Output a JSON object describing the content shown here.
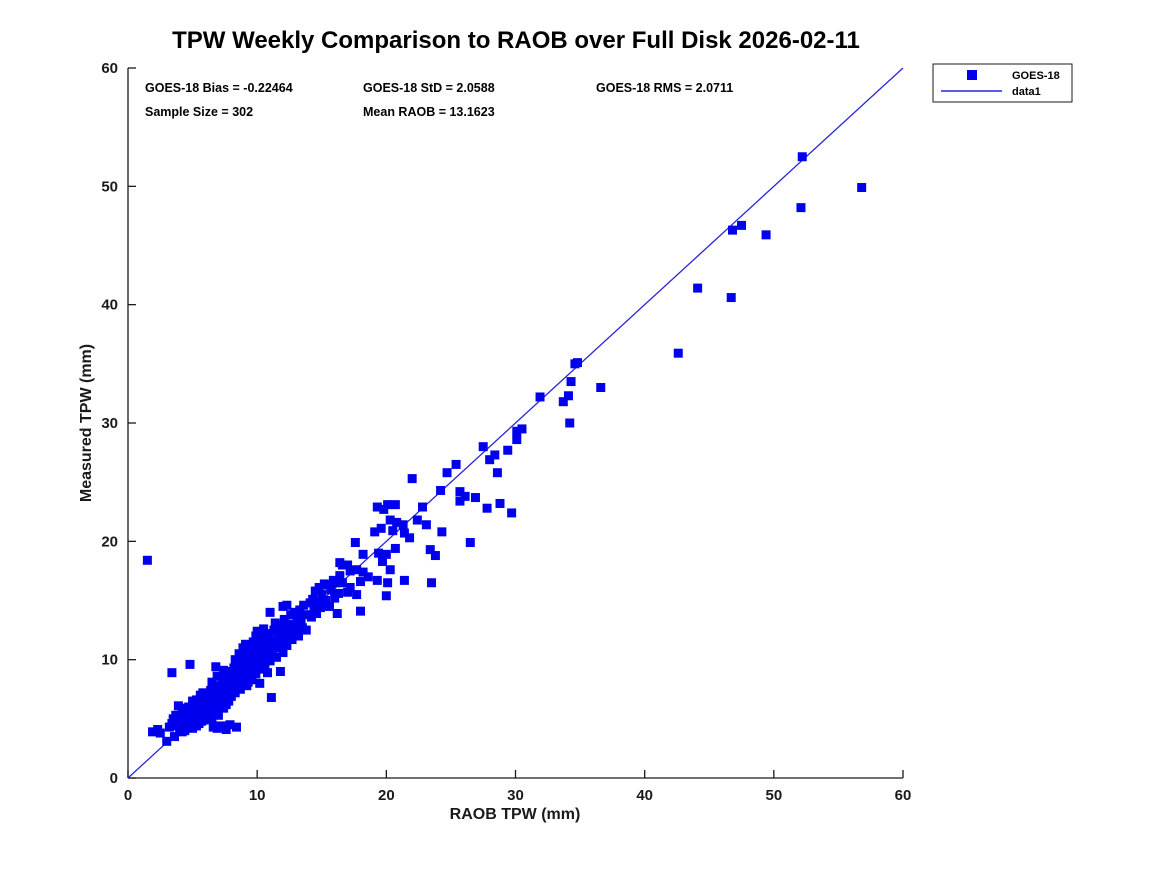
{
  "figure": {
    "background": "#FFFFFF"
  },
  "colors": {
    "marker": "#0000EE",
    "reference_line": "#2626D8",
    "axis": "#1A1A1A",
    "text": "#000000",
    "legend_border": "#1A1A1A",
    "legend_background": "#FFFFFF"
  },
  "chart_data": {
    "type": "scatter",
    "title": "TPW Weekly Comparison to RAOB over Full Disk 2026-02-11",
    "xlabel": "RAOB TPW (mm)",
    "ylabel": "Measured TPW (mm)",
    "xlim": [
      0,
      60
    ],
    "ylim": [
      0,
      60
    ],
    "x_ticks": [
      0,
      10,
      20,
      30,
      40,
      50,
      60
    ],
    "y_ticks": [
      0,
      10,
      20,
      30,
      40,
      50,
      60
    ],
    "grid": false,
    "stats": {
      "bias": "GOES-18 Bias = -0.22464",
      "std": "GOES-18 StD = 2.0588",
      "rms": "GOES-18 RMS = 2.0711",
      "sample_size": "Sample Size = 302",
      "mean_raob": "Mean RAOB = 13.1623"
    },
    "legend": {
      "position": "northeast",
      "entries": [
        {
          "label": "GOES-18",
          "type": "marker"
        },
        {
          "label": "data1",
          "type": "line"
        }
      ]
    },
    "reference_line": {
      "name": "data1",
      "from": [
        0,
        0
      ],
      "to": [
        60,
        60
      ]
    },
    "series": [
      {
        "name": "GOES-18",
        "marker": "filled-square",
        "points": [
          [
            1.5,
            18.4
          ],
          [
            1.9,
            3.9
          ],
          [
            2.3,
            4.1
          ],
          [
            2.5,
            3.8
          ],
          [
            3.0,
            3.1
          ],
          [
            3.2,
            4.3
          ],
          [
            3.4,
            4.6
          ],
          [
            3.5,
            5.0
          ],
          [
            3.6,
            3.5
          ],
          [
            3.7,
            5.3
          ],
          [
            3.8,
            4.4
          ],
          [
            3.4,
            8.9
          ],
          [
            3.9,
            6.1
          ],
          [
            4.0,
            4.1
          ],
          [
            4.1,
            4.8
          ],
          [
            4.2,
            3.9
          ],
          [
            4.2,
            5.5
          ],
          [
            4.3,
            4.6
          ],
          [
            4.4,
            5.1
          ],
          [
            4.4,
            4.0
          ],
          [
            4.5,
            5.8
          ],
          [
            4.6,
            4.3
          ],
          [
            4.6,
            5.3
          ],
          [
            4.7,
            6.0
          ],
          [
            4.8,
            4.5
          ],
          [
            4.8,
            9.6
          ],
          [
            4.9,
            5.2
          ],
          [
            5.0,
            4.2
          ],
          [
            5.0,
            5.7
          ],
          [
            5.1,
            4.8
          ],
          [
            5.1,
            6.2
          ],
          [
            5.2,
            5.4
          ],
          [
            5.3,
            4.4
          ],
          [
            5.3,
            6.6
          ],
          [
            5.4,
            5.0
          ],
          [
            5.4,
            5.9
          ],
          [
            5.5,
            4.6
          ],
          [
            5.5,
            6.3
          ],
          [
            5.6,
            5.2
          ],
          [
            5.6,
            7.0
          ],
          [
            5.7,
            5.6
          ],
          [
            5.7,
            4.8
          ],
          [
            5.8,
            6.1
          ],
          [
            5.8,
            5.3
          ],
          [
            5.9,
            6.6
          ],
          [
            5.9,
            4.9
          ],
          [
            6.0,
            5.5
          ],
          [
            6.0,
            6.9
          ],
          [
            4.3,
            5.9
          ],
          [
            5.8,
            7.2
          ],
          [
            5.0,
            6.5
          ],
          [
            6.1,
            5.8
          ],
          [
            6.1,
            6.6
          ],
          [
            6.2,
            5.2
          ],
          [
            6.2,
            7.1
          ],
          [
            6.3,
            6.0
          ],
          [
            6.3,
            6.9
          ],
          [
            6.4,
            5.6
          ],
          [
            6.4,
            7.4
          ],
          [
            6.5,
            6.3
          ],
          [
            6.5,
            5.0
          ],
          [
            6.6,
            7.0
          ],
          [
            6.6,
            4.3
          ],
          [
            6.7,
            6.1
          ],
          [
            6.7,
            7.6
          ],
          [
            6.8,
            5.8
          ],
          [
            6.8,
            6.7
          ],
          [
            6.9,
            7.3
          ],
          [
            6.9,
            4.2
          ],
          [
            7.0,
            6.4
          ],
          [
            7.0,
            7.8
          ],
          [
            7.1,
            6.0
          ],
          [
            7.1,
            7.0
          ],
          [
            7.2,
            7.5
          ],
          [
            7.2,
            4.4
          ],
          [
            7.3,
            6.6
          ],
          [
            7.3,
            8.1
          ],
          [
            7.4,
            7.2
          ],
          [
            7.4,
            5.9
          ],
          [
            7.5,
            6.8
          ],
          [
            7.5,
            8.4
          ],
          [
            7.6,
            7.7
          ],
          [
            7.6,
            4.1
          ],
          [
            7.7,
            7.0
          ],
          [
            7.7,
            8.8
          ],
          [
            7.8,
            6.5
          ],
          [
            7.8,
            7.9
          ],
          [
            7.9,
            7.3
          ],
          [
            7.9,
            4.5
          ],
          [
            8.0,
            8.2
          ],
          [
            8.0,
            6.9
          ],
          [
            6.5,
            8.1
          ],
          [
            7.0,
            5.3
          ],
          [
            7.6,
            6.2
          ],
          [
            8.0,
            9.0
          ],
          [
            6.9,
            8.6
          ],
          [
            7.4,
            9.1
          ],
          [
            6.8,
            9.4
          ],
          [
            8.1,
            7.6
          ],
          [
            8.1,
            8.7
          ],
          [
            8.2,
            8.0
          ],
          [
            8.2,
            9.3
          ],
          [
            8.3,
            7.2
          ],
          [
            8.3,
            8.5
          ],
          [
            8.4,
            4.3
          ],
          [
            8.4,
            9.0
          ],
          [
            8.5,
            7.8
          ],
          [
            8.5,
            8.8
          ],
          [
            8.6,
            8.2
          ],
          [
            8.6,
            9.6
          ],
          [
            8.7,
            7.5
          ],
          [
            8.7,
            9.2
          ],
          [
            8.8,
            8.6
          ],
          [
            8.8,
            10.0
          ],
          [
            8.9,
            8.0
          ],
          [
            8.9,
            9.4
          ],
          [
            9.0,
            8.9
          ],
          [
            9.0,
            10.3
          ],
          [
            9.1,
            8.4
          ],
          [
            9.1,
            9.8
          ],
          [
            9.2,
            9.1
          ],
          [
            9.2,
            7.8
          ],
          [
            9.3,
            9.5
          ],
          [
            9.3,
            10.7
          ],
          [
            9.4,
            8.7
          ],
          [
            9.4,
            10.1
          ],
          [
            9.5,
            9.3
          ],
          [
            9.5,
            11.0
          ],
          [
            9.6,
            9.9
          ],
          [
            9.6,
            8.3
          ],
          [
            9.7,
            10.5
          ],
          [
            9.7,
            9.0
          ],
          [
            9.8,
            9.6
          ],
          [
            9.8,
            11.2
          ],
          [
            9.9,
            10.1
          ],
          [
            9.9,
            8.8
          ],
          [
            10.0,
            9.4
          ],
          [
            10.0,
            10.8
          ],
          [
            8.9,
            11.0
          ],
          [
            9.3,
            8.1
          ],
          [
            9.7,
            11.5
          ],
          [
            8.6,
            10.5
          ],
          [
            9.1,
            11.3
          ],
          [
            9.9,
            12.0
          ],
          [
            8.3,
            10.0
          ],
          [
            10.0,
            12.4
          ],
          [
            10.1,
            10.2
          ],
          [
            10.1,
            11.5
          ],
          [
            10.2,
            8.0
          ],
          [
            10.2,
            9.7
          ],
          [
            10.3,
            10.6
          ],
          [
            10.3,
            12.0
          ],
          [
            10.4,
            9.2
          ],
          [
            10.4,
            11.0
          ],
          [
            10.5,
            10.1
          ],
          [
            10.5,
            12.6
          ],
          [
            10.6,
            9.6
          ],
          [
            10.6,
            11.4
          ],
          [
            10.7,
            10.9
          ],
          [
            10.8,
            8.9
          ],
          [
            10.8,
            12.2
          ],
          [
            10.9,
            10.4
          ],
          [
            10.9,
            11.8
          ],
          [
            11.0,
            9.9
          ],
          [
            11.1,
            6.8
          ],
          [
            11.1,
            11.2
          ],
          [
            11.2,
            10.7
          ],
          [
            11.3,
            12.5
          ],
          [
            11.4,
            11.6
          ],
          [
            11.5,
            10.2
          ],
          [
            11.6,
            12.1
          ],
          [
            11.7,
            11.0
          ],
          [
            11.8,
            9.0
          ],
          [
            11.8,
            12.9
          ],
          [
            11.9,
            11.5
          ],
          [
            12.0,
            10.6
          ],
          [
            12.0,
            12.3
          ],
          [
            11.4,
            13.1
          ],
          [
            11.0,
            14.0
          ],
          [
            12.1,
            11.9
          ],
          [
            12.1,
            13.4
          ],
          [
            12.2,
            12.6
          ],
          [
            12.3,
            11.2
          ],
          [
            12.3,
            14.6
          ],
          [
            12.4,
            13.0
          ],
          [
            12.5,
            12.2
          ],
          [
            12.6,
            13.8
          ],
          [
            12.7,
            11.7
          ],
          [
            12.8,
            12.9
          ],
          [
            12.9,
            14.0
          ],
          [
            13.0,
            12.4
          ],
          [
            13.1,
            13.5
          ],
          [
            13.2,
            12.0
          ],
          [
            13.3,
            14.2
          ],
          [
            13.4,
            13.1
          ],
          [
            13.5,
            12.7
          ],
          [
            13.6,
            14.6
          ],
          [
            13.7,
            13.8
          ],
          [
            13.8,
            12.5
          ],
          [
            12.0,
            14.5
          ],
          [
            14.1,
            14.8
          ],
          [
            14.2,
            13.6
          ],
          [
            14.3,
            15.1
          ],
          [
            14.4,
            14.2
          ],
          [
            14.5,
            15.8
          ],
          [
            14.6,
            13.9
          ],
          [
            14.7,
            14.9
          ],
          [
            14.8,
            16.1
          ],
          [
            14.9,
            14.4
          ],
          [
            15.0,
            15.5
          ],
          [
            15.1,
            14.8
          ],
          [
            15.2,
            16.4
          ],
          [
            15.3,
            15.0
          ],
          [
            15.5,
            16.3
          ],
          [
            15.6,
            14.5
          ],
          [
            15.7,
            15.9
          ],
          [
            15.9,
            16.7
          ],
          [
            16.0,
            15.2
          ],
          [
            16.1,
            16.5
          ],
          [
            16.2,
            13.9
          ],
          [
            16.3,
            15.6
          ],
          [
            16.4,
            17.1
          ],
          [
            16.4,
            18.2
          ],
          [
            16.6,
            18.0
          ],
          [
            16.6,
            16.5
          ],
          [
            17.0,
            15.7
          ],
          [
            17.0,
            18.0
          ],
          [
            17.2,
            17.5
          ],
          [
            17.2,
            16.1
          ],
          [
            17.6,
            19.9
          ],
          [
            17.7,
            17.6
          ],
          [
            17.7,
            15.5
          ],
          [
            18.0,
            16.6
          ],
          [
            18.0,
            14.1
          ],
          [
            18.2,
            17.4
          ],
          [
            18.2,
            18.9
          ],
          [
            18.6,
            17.0
          ],
          [
            19.1,
            20.8
          ],
          [
            19.3,
            22.9
          ],
          [
            19.3,
            16.7
          ],
          [
            19.4,
            19.0
          ],
          [
            19.7,
            18.3
          ],
          [
            19.8,
            22.7
          ],
          [
            19.6,
            21.1
          ],
          [
            20.0,
            18.9
          ],
          [
            20.0,
            15.4
          ],
          [
            20.1,
            23.1
          ],
          [
            20.1,
            16.5
          ],
          [
            20.3,
            21.8
          ],
          [
            20.3,
            17.6
          ],
          [
            20.5,
            20.9
          ],
          [
            20.7,
            23.1
          ],
          [
            20.7,
            19.4
          ],
          [
            20.8,
            21.6
          ],
          [
            21.3,
            21.4
          ],
          [
            21.4,
            20.7
          ],
          [
            21.4,
            16.7
          ],
          [
            21.8,
            20.3
          ],
          [
            22.0,
            25.3
          ],
          [
            22.4,
            21.8
          ],
          [
            22.8,
            22.9
          ],
          [
            23.1,
            21.4
          ],
          [
            23.4,
            19.3
          ],
          [
            23.5,
            16.5
          ],
          [
            23.8,
            18.8
          ],
          [
            24.3,
            20.8
          ],
          [
            24.2,
            24.3
          ],
          [
            24.7,
            25.8
          ],
          [
            25.4,
            26.5
          ],
          [
            25.7,
            24.2
          ],
          [
            26.1,
            23.8
          ],
          [
            26.5,
            19.9
          ],
          [
            26.9,
            23.7
          ],
          [
            25.7,
            23.4
          ],
          [
            27.5,
            28.0
          ],
          [
            27.8,
            22.8
          ],
          [
            28.0,
            26.9
          ],
          [
            28.4,
            27.3
          ],
          [
            28.6,
            25.8
          ],
          [
            28.8,
            23.2
          ],
          [
            29.4,
            27.7
          ],
          [
            29.7,
            22.4
          ],
          [
            30.1,
            28.6
          ],
          [
            30.1,
            29.3
          ],
          [
            30.5,
            29.5
          ],
          [
            31.9,
            32.2
          ],
          [
            33.7,
            31.8
          ],
          [
            34.1,
            32.3
          ],
          [
            34.3,
            33.5
          ],
          [
            34.2,
            30.0
          ],
          [
            34.8,
            35.1
          ],
          [
            34.6,
            35.0
          ],
          [
            36.6,
            33.0
          ],
          [
            42.6,
            35.9
          ],
          [
            44.1,
            41.4
          ],
          [
            46.7,
            40.6
          ],
          [
            46.8,
            46.3
          ],
          [
            47.5,
            46.7
          ],
          [
            49.4,
            45.9
          ],
          [
            52.1,
            48.2
          ],
          [
            52.2,
            52.5
          ],
          [
            56.8,
            49.9
          ]
        ]
      }
    ]
  }
}
